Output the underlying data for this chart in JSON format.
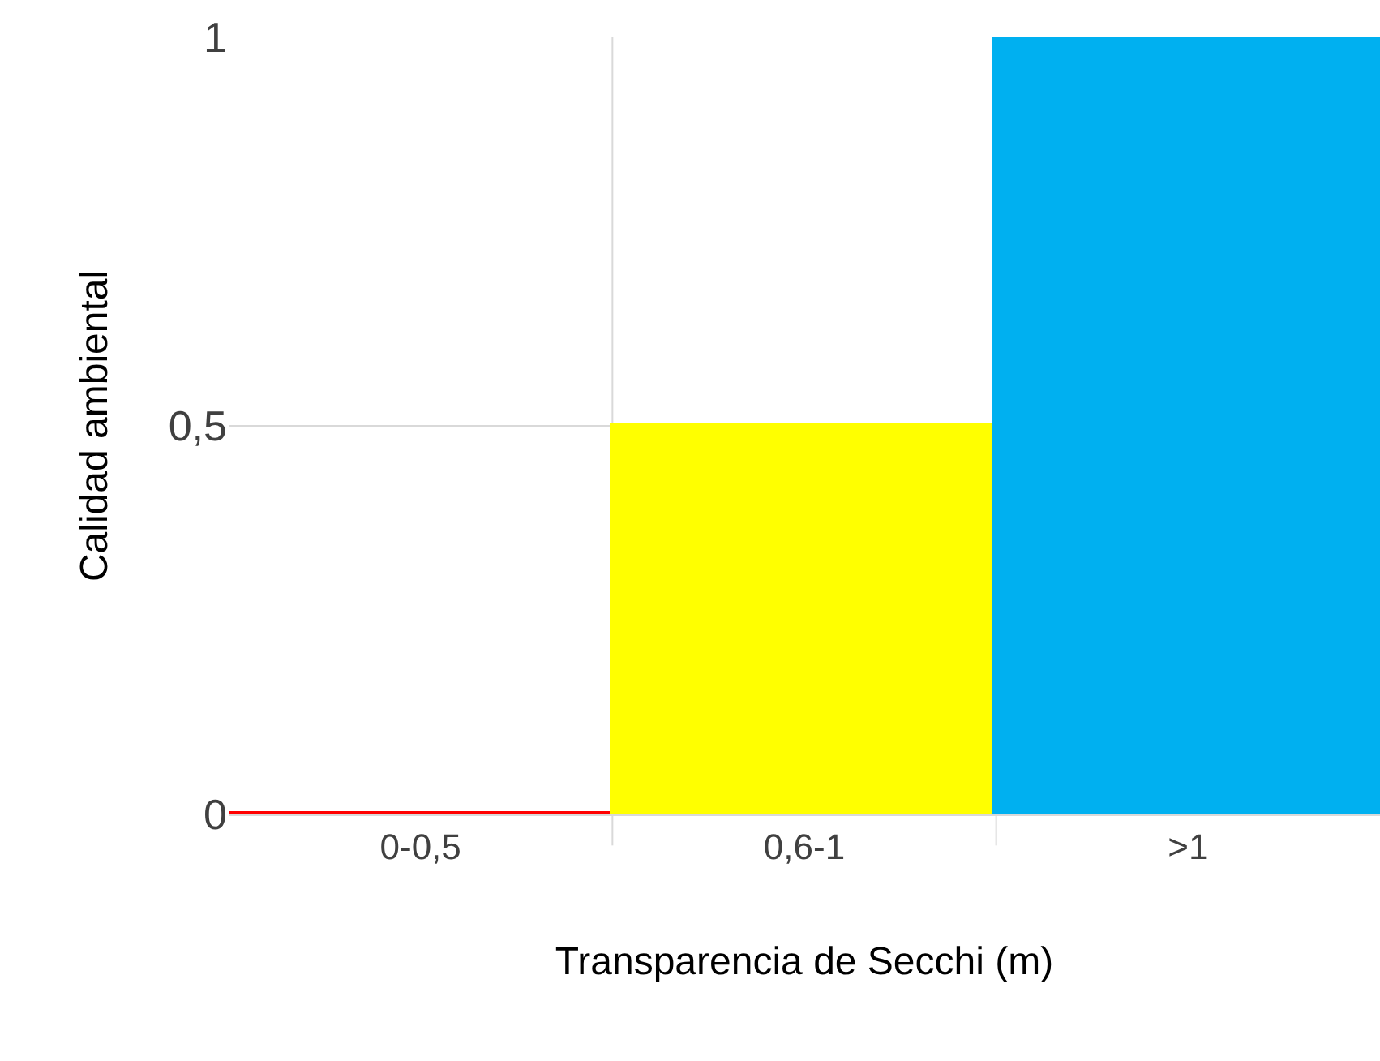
{
  "chart_data": {
    "type": "bar",
    "xlabel": "Transparencia de Secchi (m)",
    "ylabel": "Calidad ambiental",
    "categories": [
      "0-0,5",
      "0,6-1",
      ">1"
    ],
    "values": [
      0,
      0.5,
      1
    ],
    "colors": [
      "#ff0000",
      "#ffff00",
      "#00b0f0"
    ],
    "ylim": [
      0,
      1
    ],
    "yticks": [
      0,
      {
        "value": 0.5,
        "label": "0,5"
      },
      1
    ],
    "grid": true
  }
}
